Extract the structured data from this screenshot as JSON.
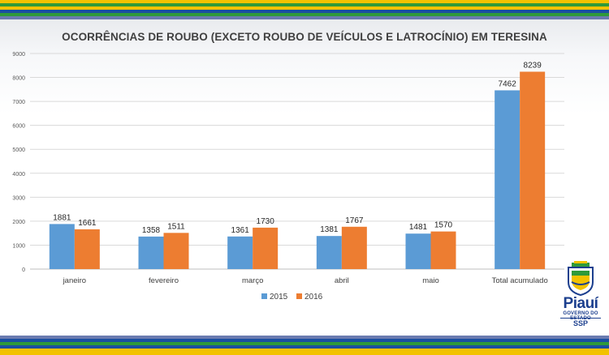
{
  "chart_data": {
    "type": "bar",
    "title": "OCORRÊNCIAS DE ROUBO (EXCETO ROUBO DE VEÍCULOS E LATROCÍNIO) EM TERESINA",
    "categories": [
      "janeiro",
      "fevereiro",
      "março",
      "abril",
      "maio",
      "Total acumulado"
    ],
    "series": [
      {
        "name": "2015",
        "values": [
          1881,
          1358,
          1361,
          1381,
          1481,
          7462
        ],
        "color": "#5b9bd5"
      },
      {
        "name": "2016",
        "values": [
          1661,
          1511,
          1730,
          1767,
          1570,
          8239
        ],
        "color": "#ed7d31"
      }
    ],
    "ylim": [
      0,
      9000
    ],
    "yticks": [
      0,
      1000,
      2000,
      3000,
      4000,
      5000,
      6000,
      7000,
      8000,
      9000
    ],
    "grid": true,
    "legend_position": "bottom"
  },
  "logo": {
    "name": "Piauí",
    "subtitle": "GOVERNO DO ESTADO",
    "dept": "SSP",
    "icon": "state-coat-of-arms-icon"
  },
  "colors": {
    "stripe_top": [
      "#f5c400",
      "#2f9a3a",
      "#1b4fa0"
    ],
    "stripe_bottom": [
      "#1b4fa0",
      "#2f9a3a",
      "#f5c400"
    ],
    "grid": "#d9d9d9",
    "text": "#404040"
  }
}
